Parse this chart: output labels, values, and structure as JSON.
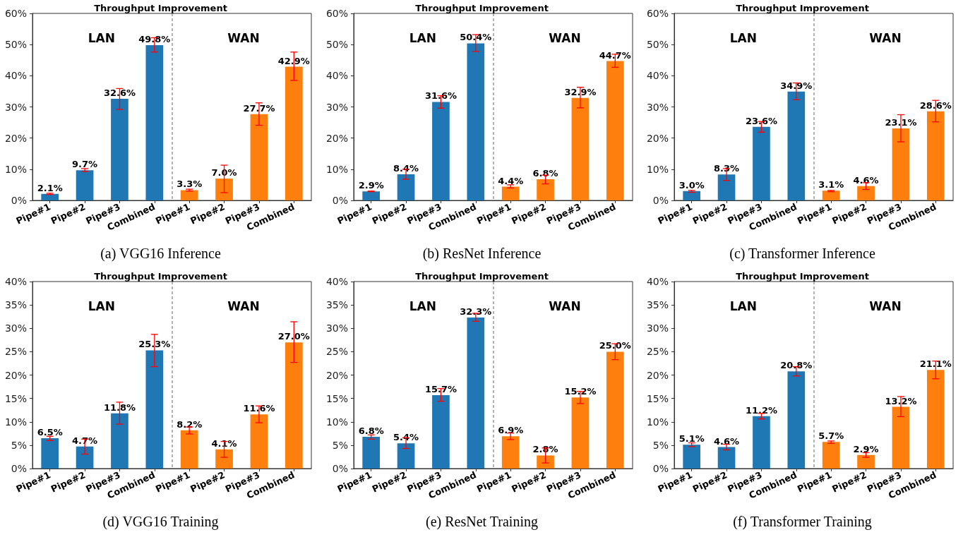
{
  "chart_data": [
    {
      "type": "bar",
      "title": "Throughput Improvement",
      "subtitle": "(a) VGG16 Inference",
      "annotations": [
        "LAN",
        "WAN"
      ],
      "categories": [
        "Pipe#1",
        "Pipe#2",
        "Pipe#3",
        "Combined",
        "Pipe#1",
        "Pipe#2",
        "Pipe#3",
        "Combined"
      ],
      "values": [
        2.1,
        9.7,
        32.6,
        49.8,
        3.3,
        7.0,
        27.7,
        42.9
      ],
      "colors": [
        "#1f77b4",
        "#1f77b4",
        "#1f77b4",
        "#1f77b4",
        "#ff7f0e",
        "#ff7f0e",
        "#ff7f0e",
        "#ff7f0e"
      ],
      "errors": [
        [
          1.9,
          2.3
        ],
        [
          9.3,
          10.2
        ],
        [
          29.2,
          35.9
        ],
        [
          47.6,
          52.2
        ],
        [
          3.0,
          3.6
        ],
        [
          2.5,
          11.3
        ],
        [
          24.1,
          31.3
        ],
        [
          38.5,
          47.6
        ]
      ],
      "value_labels": [
        "2.1%",
        "9.7%",
        "32.6%",
        "49.8%",
        "3.3%",
        "7.0%",
        "27.7%",
        "42.9%"
      ],
      "ylim": [
        0,
        60
      ],
      "yticks": [
        {
          "value": 0,
          "label": "0%"
        },
        {
          "value": 10,
          "label": "10%"
        },
        {
          "value": 20,
          "label": "20%"
        },
        {
          "value": 30,
          "label": "30%"
        },
        {
          "value": 40,
          "label": "40%"
        },
        {
          "value": 50,
          "label": "50%"
        },
        {
          "value": 60,
          "label": "60%"
        }
      ]
    },
    {
      "type": "bar",
      "title": "Throughput Improvement",
      "subtitle": "(b) ResNet Inference",
      "annotations": [
        "LAN",
        "WAN"
      ],
      "categories": [
        "Pipe#1",
        "Pipe#2",
        "Pipe#3",
        "Combined",
        "Pipe#1",
        "Pipe#2",
        "Pipe#3",
        "Combined"
      ],
      "values": [
        2.9,
        8.4,
        31.6,
        50.4,
        4.4,
        6.8,
        32.9,
        44.7
      ],
      "colors": [
        "#1f77b4",
        "#1f77b4",
        "#1f77b4",
        "#1f77b4",
        "#ff7f0e",
        "#ff7f0e",
        "#ff7f0e",
        "#ff7f0e"
      ],
      "errors": [
        [
          2.8,
          3.0
        ],
        [
          6.8,
          10.0
        ],
        [
          29.6,
          33.6
        ],
        [
          47.8,
          53.2
        ],
        [
          4.0,
          5.0
        ],
        [
          5.3,
          8.1
        ],
        [
          29.7,
          36.3
        ],
        [
          42.7,
          46.9
        ]
      ],
      "value_labels": [
        "2.9%",
        "8.4%",
        "31.6%",
        "50.4%",
        "4.4%",
        "6.8%",
        "32.9%",
        "44.7%"
      ],
      "ylim": [
        0,
        60
      ],
      "yticks": [
        {
          "value": 0,
          "label": "0%"
        },
        {
          "value": 10,
          "label": "10%"
        },
        {
          "value": 20,
          "label": "20%"
        },
        {
          "value": 30,
          "label": "30%"
        },
        {
          "value": 40,
          "label": "40%"
        },
        {
          "value": 50,
          "label": "50%"
        },
        {
          "value": 60,
          "label": "60%"
        }
      ]
    },
    {
      "type": "bar",
      "title": "Throughput Improvement",
      "subtitle": "(c) Transformer Inference",
      "annotations": [
        "LAN",
        "WAN"
      ],
      "categories": [
        "Pipe#1",
        "Pipe#2",
        "Pipe#3",
        "Combined",
        "Pipe#1",
        "Pipe#2",
        "Pipe#3",
        "Combined"
      ],
      "values": [
        3.0,
        8.3,
        23.6,
        34.9,
        3.1,
        4.6,
        23.1,
        28.6
      ],
      "colors": [
        "#1f77b4",
        "#1f77b4",
        "#1f77b4",
        "#1f77b4",
        "#ff7f0e",
        "#ff7f0e",
        "#ff7f0e",
        "#ff7f0e"
      ],
      "errors": [
        [
          2.6,
          3.2
        ],
        [
          6.4,
          10.2
        ],
        [
          21.9,
          25.3
        ],
        [
          32.3,
          37.7
        ],
        [
          2.8,
          3.2
        ],
        [
          3.5,
          5.7
        ],
        [
          18.8,
          27.5
        ],
        [
          25.2,
          32.1
        ]
      ],
      "value_labels": [
        "3.0%",
        "8.3%",
        "23.6%",
        "34.9%",
        "3.1%",
        "4.6%",
        "23.1%",
        "28.6%"
      ],
      "ylim": [
        0,
        60
      ],
      "yticks": [
        {
          "value": 0,
          "label": "0%"
        },
        {
          "value": 10,
          "label": "10%"
        },
        {
          "value": 20,
          "label": "20%"
        },
        {
          "value": 30,
          "label": "30%"
        },
        {
          "value": 40,
          "label": "40%"
        },
        {
          "value": 50,
          "label": "50%"
        },
        {
          "value": 60,
          "label": "60%"
        }
      ]
    },
    {
      "type": "bar",
      "title": "Throughput Improvement",
      "subtitle": "(d) VGG16 Training",
      "annotations": [
        "LAN",
        "WAN"
      ],
      "categories": [
        "Pipe#1",
        "Pipe#2",
        "Pipe#3",
        "Combined",
        "Pipe#1",
        "Pipe#2",
        "Pipe#3",
        "Combined"
      ],
      "values": [
        6.5,
        4.7,
        11.8,
        25.3,
        8.2,
        4.1,
        11.6,
        27.0
      ],
      "colors": [
        "#1f77b4",
        "#1f77b4",
        "#1f77b4",
        "#1f77b4",
        "#ff7f0e",
        "#ff7f0e",
        "#ff7f0e",
        "#ff7f0e"
      ],
      "errors": [
        [
          6.0,
          6.9
        ],
        [
          3.1,
          6.3
        ],
        [
          9.5,
          14.2
        ],
        [
          21.8,
          28.7
        ],
        [
          7.4,
          8.9
        ],
        [
          2.4,
          5.8
        ],
        [
          9.8,
          13.4
        ],
        [
          22.7,
          31.4
        ]
      ],
      "value_labels": [
        "6.5%",
        "4.7%",
        "11.8%",
        "25.3%",
        "8.2%",
        "4.1%",
        "11.6%",
        "27.0%"
      ],
      "ylim": [
        0,
        40
      ],
      "yticks": [
        {
          "value": 0,
          "label": "0%"
        },
        {
          "value": 5,
          "label": "5%"
        },
        {
          "value": 10,
          "label": "10%"
        },
        {
          "value": 15,
          "label": "15%"
        },
        {
          "value": 20,
          "label": "20%"
        },
        {
          "value": 25,
          "label": "25%"
        },
        {
          "value": 30,
          "label": "30%"
        },
        {
          "value": 35,
          "label": "35%"
        },
        {
          "value": 40,
          "label": "40%"
        }
      ]
    },
    {
      "type": "bar",
      "title": "Throughput Improvement",
      "subtitle": "(e) ResNet Training",
      "annotations": [
        "LAN",
        "WAN"
      ],
      "categories": [
        "Pipe#1",
        "Pipe#2",
        "Pipe#3",
        "Combined",
        "Pipe#1",
        "Pipe#2",
        "Pipe#3",
        "Combined"
      ],
      "values": [
        6.8,
        5.4,
        15.7,
        32.3,
        6.9,
        2.8,
        15.2,
        25.0
      ],
      "colors": [
        "#1f77b4",
        "#1f77b4",
        "#1f77b4",
        "#1f77b4",
        "#ff7f0e",
        "#ff7f0e",
        "#ff7f0e",
        "#ff7f0e"
      ],
      "errors": [
        [
          6.3,
          7.2
        ],
        [
          4.3,
          6.6
        ],
        [
          14.4,
          17.1
        ],
        [
          31.5,
          33.2
        ],
        [
          6.2,
          7.6
        ],
        [
          1.2,
          4.4
        ],
        [
          13.9,
          16.5
        ],
        [
          23.3,
          26.7
        ]
      ],
      "value_labels": [
        "6.8%",
        "5.4%",
        "15.7%",
        "32.3%",
        "6.9%",
        "2.8%",
        "15.2%",
        "25.0%"
      ],
      "ylim": [
        0,
        40
      ],
      "yticks": [
        {
          "value": 0,
          "label": "0%"
        },
        {
          "value": 5,
          "label": "5%"
        },
        {
          "value": 10,
          "label": "10%"
        },
        {
          "value": 15,
          "label": "15%"
        },
        {
          "value": 20,
          "label": "20%"
        },
        {
          "value": 25,
          "label": "25%"
        },
        {
          "value": 30,
          "label": "30%"
        },
        {
          "value": 35,
          "label": "35%"
        },
        {
          "value": 40,
          "label": "40%"
        }
      ]
    },
    {
      "type": "bar",
      "title": "Throughput Improvement",
      "subtitle": "(f) Transformer Training",
      "annotations": [
        "LAN",
        "WAN"
      ],
      "categories": [
        "Pipe#1",
        "Pipe#2",
        "Pipe#3",
        "Combined",
        "Pipe#1",
        "Pipe#2",
        "Pipe#3",
        "Combined"
      ],
      "values": [
        5.1,
        4.6,
        11.2,
        20.8,
        5.7,
        2.9,
        13.2,
        21.1
      ],
      "colors": [
        "#1f77b4",
        "#1f77b4",
        "#1f77b4",
        "#1f77b4",
        "#ff7f0e",
        "#ff7f0e",
        "#ff7f0e",
        "#ff7f0e"
      ],
      "errors": [
        [
          4.7,
          5.5
        ],
        [
          4.0,
          5.2
        ],
        [
          10.6,
          11.8
        ],
        [
          19.8,
          21.8
        ],
        [
          5.4,
          5.9
        ],
        [
          2.4,
          3.4
        ],
        [
          11.1,
          15.4
        ],
        [
          19.2,
          23.0
        ]
      ],
      "value_labels": [
        "5.1%",
        "4.6%",
        "11.2%",
        "20.8%",
        "5.7%",
        "2.9%",
        "13.2%",
        "21.1%"
      ],
      "ylim": [
        0,
        40
      ],
      "yticks": [
        {
          "value": 0,
          "label": "0%"
        },
        {
          "value": 5,
          "label": "5%"
        },
        {
          "value": 10,
          "label": "10%"
        },
        {
          "value": 15,
          "label": "15%"
        },
        {
          "value": 20,
          "label": "20%"
        },
        {
          "value": 25,
          "label": "25%"
        },
        {
          "value": 30,
          "label": "30%"
        },
        {
          "value": 35,
          "label": "35%"
        },
        {
          "value": 40,
          "label": "40%"
        }
      ]
    }
  ]
}
